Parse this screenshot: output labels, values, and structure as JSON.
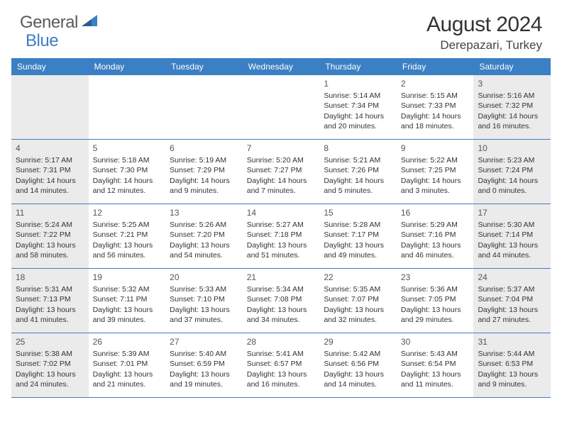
{
  "logo": {
    "text_gray": "General",
    "text_blue": "Blue"
  },
  "title": "August 2024",
  "location": "Derepazari, Turkey",
  "colors": {
    "header_bg": "#3b7fc4",
    "header_text": "#ffffff",
    "weekend_bg": "#ebebeb",
    "body_text": "#333333",
    "day_num": "#555555",
    "logo_gray": "#5a5a5a",
    "logo_blue": "#3b7fc4",
    "border": "#3b7fc4"
  },
  "day_names": [
    "Sunday",
    "Monday",
    "Tuesday",
    "Wednesday",
    "Thursday",
    "Friday",
    "Saturday"
  ],
  "weeks": [
    [
      {
        "n": "",
        "l1": "",
        "l2": "",
        "l3": "",
        "l4": "",
        "we": true
      },
      {
        "n": "",
        "l1": "",
        "l2": "",
        "l3": "",
        "l4": "",
        "we": false
      },
      {
        "n": "",
        "l1": "",
        "l2": "",
        "l3": "",
        "l4": "",
        "we": false
      },
      {
        "n": "",
        "l1": "",
        "l2": "",
        "l3": "",
        "l4": "",
        "we": false
      },
      {
        "n": "1",
        "l1": "Sunrise: 5:14 AM",
        "l2": "Sunset: 7:34 PM",
        "l3": "Daylight: 14 hours",
        "l4": "and 20 minutes.",
        "we": false
      },
      {
        "n": "2",
        "l1": "Sunrise: 5:15 AM",
        "l2": "Sunset: 7:33 PM",
        "l3": "Daylight: 14 hours",
        "l4": "and 18 minutes.",
        "we": false
      },
      {
        "n": "3",
        "l1": "Sunrise: 5:16 AM",
        "l2": "Sunset: 7:32 PM",
        "l3": "Daylight: 14 hours",
        "l4": "and 16 minutes.",
        "we": true
      }
    ],
    [
      {
        "n": "4",
        "l1": "Sunrise: 5:17 AM",
        "l2": "Sunset: 7:31 PM",
        "l3": "Daylight: 14 hours",
        "l4": "and 14 minutes.",
        "we": true
      },
      {
        "n": "5",
        "l1": "Sunrise: 5:18 AM",
        "l2": "Sunset: 7:30 PM",
        "l3": "Daylight: 14 hours",
        "l4": "and 12 minutes.",
        "we": false
      },
      {
        "n": "6",
        "l1": "Sunrise: 5:19 AM",
        "l2": "Sunset: 7:29 PM",
        "l3": "Daylight: 14 hours",
        "l4": "and 9 minutes.",
        "we": false
      },
      {
        "n": "7",
        "l1": "Sunrise: 5:20 AM",
        "l2": "Sunset: 7:27 PM",
        "l3": "Daylight: 14 hours",
        "l4": "and 7 minutes.",
        "we": false
      },
      {
        "n": "8",
        "l1": "Sunrise: 5:21 AM",
        "l2": "Sunset: 7:26 PM",
        "l3": "Daylight: 14 hours",
        "l4": "and 5 minutes.",
        "we": false
      },
      {
        "n": "9",
        "l1": "Sunrise: 5:22 AM",
        "l2": "Sunset: 7:25 PM",
        "l3": "Daylight: 14 hours",
        "l4": "and 3 minutes.",
        "we": false
      },
      {
        "n": "10",
        "l1": "Sunrise: 5:23 AM",
        "l2": "Sunset: 7:24 PM",
        "l3": "Daylight: 14 hours",
        "l4": "and 0 minutes.",
        "we": true
      }
    ],
    [
      {
        "n": "11",
        "l1": "Sunrise: 5:24 AM",
        "l2": "Sunset: 7:22 PM",
        "l3": "Daylight: 13 hours",
        "l4": "and 58 minutes.",
        "we": true
      },
      {
        "n": "12",
        "l1": "Sunrise: 5:25 AM",
        "l2": "Sunset: 7:21 PM",
        "l3": "Daylight: 13 hours",
        "l4": "and 56 minutes.",
        "we": false
      },
      {
        "n": "13",
        "l1": "Sunrise: 5:26 AM",
        "l2": "Sunset: 7:20 PM",
        "l3": "Daylight: 13 hours",
        "l4": "and 54 minutes.",
        "we": false
      },
      {
        "n": "14",
        "l1": "Sunrise: 5:27 AM",
        "l2": "Sunset: 7:18 PM",
        "l3": "Daylight: 13 hours",
        "l4": "and 51 minutes.",
        "we": false
      },
      {
        "n": "15",
        "l1": "Sunrise: 5:28 AM",
        "l2": "Sunset: 7:17 PM",
        "l3": "Daylight: 13 hours",
        "l4": "and 49 minutes.",
        "we": false
      },
      {
        "n": "16",
        "l1": "Sunrise: 5:29 AM",
        "l2": "Sunset: 7:16 PM",
        "l3": "Daylight: 13 hours",
        "l4": "and 46 minutes.",
        "we": false
      },
      {
        "n": "17",
        "l1": "Sunrise: 5:30 AM",
        "l2": "Sunset: 7:14 PM",
        "l3": "Daylight: 13 hours",
        "l4": "and 44 minutes.",
        "we": true
      }
    ],
    [
      {
        "n": "18",
        "l1": "Sunrise: 5:31 AM",
        "l2": "Sunset: 7:13 PM",
        "l3": "Daylight: 13 hours",
        "l4": "and 41 minutes.",
        "we": true
      },
      {
        "n": "19",
        "l1": "Sunrise: 5:32 AM",
        "l2": "Sunset: 7:11 PM",
        "l3": "Daylight: 13 hours",
        "l4": "and 39 minutes.",
        "we": false
      },
      {
        "n": "20",
        "l1": "Sunrise: 5:33 AM",
        "l2": "Sunset: 7:10 PM",
        "l3": "Daylight: 13 hours",
        "l4": "and 37 minutes.",
        "we": false
      },
      {
        "n": "21",
        "l1": "Sunrise: 5:34 AM",
        "l2": "Sunset: 7:08 PM",
        "l3": "Daylight: 13 hours",
        "l4": "and 34 minutes.",
        "we": false
      },
      {
        "n": "22",
        "l1": "Sunrise: 5:35 AM",
        "l2": "Sunset: 7:07 PM",
        "l3": "Daylight: 13 hours",
        "l4": "and 32 minutes.",
        "we": false
      },
      {
        "n": "23",
        "l1": "Sunrise: 5:36 AM",
        "l2": "Sunset: 7:05 PM",
        "l3": "Daylight: 13 hours",
        "l4": "and 29 minutes.",
        "we": false
      },
      {
        "n": "24",
        "l1": "Sunrise: 5:37 AM",
        "l2": "Sunset: 7:04 PM",
        "l3": "Daylight: 13 hours",
        "l4": "and 27 minutes.",
        "we": true
      }
    ],
    [
      {
        "n": "25",
        "l1": "Sunrise: 5:38 AM",
        "l2": "Sunset: 7:02 PM",
        "l3": "Daylight: 13 hours",
        "l4": "and 24 minutes.",
        "we": true
      },
      {
        "n": "26",
        "l1": "Sunrise: 5:39 AM",
        "l2": "Sunset: 7:01 PM",
        "l3": "Daylight: 13 hours",
        "l4": "and 21 minutes.",
        "we": false
      },
      {
        "n": "27",
        "l1": "Sunrise: 5:40 AM",
        "l2": "Sunset: 6:59 PM",
        "l3": "Daylight: 13 hours",
        "l4": "and 19 minutes.",
        "we": false
      },
      {
        "n": "28",
        "l1": "Sunrise: 5:41 AM",
        "l2": "Sunset: 6:57 PM",
        "l3": "Daylight: 13 hours",
        "l4": "and 16 minutes.",
        "we": false
      },
      {
        "n": "29",
        "l1": "Sunrise: 5:42 AM",
        "l2": "Sunset: 6:56 PM",
        "l3": "Daylight: 13 hours",
        "l4": "and 14 minutes.",
        "we": false
      },
      {
        "n": "30",
        "l1": "Sunrise: 5:43 AM",
        "l2": "Sunset: 6:54 PM",
        "l3": "Daylight: 13 hours",
        "l4": "and 11 minutes.",
        "we": false
      },
      {
        "n": "31",
        "l1": "Sunrise: 5:44 AM",
        "l2": "Sunset: 6:53 PM",
        "l3": "Daylight: 13 hours",
        "l4": "and 9 minutes.",
        "we": true
      }
    ]
  ]
}
